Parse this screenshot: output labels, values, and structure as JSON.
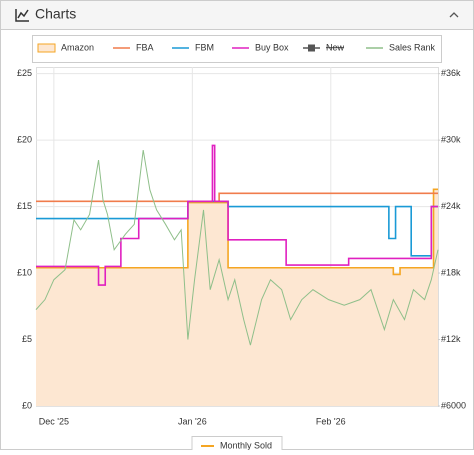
{
  "header": {
    "title": "Charts"
  },
  "chart_data": {
    "type": "line",
    "xlim": [
      -4,
      86
    ],
    "xticks": [
      {
        "value": 0,
        "label": "Dec '25"
      },
      {
        "value": 31,
        "label": "Jan '26"
      },
      {
        "value": 62,
        "label": "Feb '26"
      }
    ],
    "ylim": [
      0,
      25.5
    ],
    "yticks": [
      {
        "value": 0,
        "label": "£0"
      },
      {
        "value": 5,
        "label": "£5"
      },
      {
        "value": 10,
        "label": "£10"
      },
      {
        "value": 15,
        "label": "£15"
      },
      {
        "value": 20,
        "label": "£20"
      },
      {
        "value": 25,
        "label": "£25"
      }
    ],
    "y2lim": [
      6000,
      36600
    ],
    "y2ticks": [
      {
        "value": 6000,
        "label": "#6000"
      },
      {
        "value": 12000,
        "label": "#12k"
      },
      {
        "value": 18000,
        "label": "#18k"
      },
      {
        "value": 24000,
        "label": "#24k"
      },
      {
        "value": 30000,
        "label": "#30k"
      },
      {
        "value": 36000,
        "label": "#36k"
      }
    ],
    "grid": true,
    "series": [
      {
        "name": "Amazon",
        "color": "#f5a623",
        "fill": "#fde7d2",
        "step": true,
        "x": [
          -4,
          30,
          39,
          76,
          77.5,
          85
        ],
        "values": [
          10.4,
          15.3,
          10.4,
          9.9,
          10.4,
          16.3
        ]
      },
      {
        "name": "FBA",
        "color": "#f07c4c",
        "step": true,
        "x": [
          -4,
          37
        ],
        "values": [
          15.4,
          16.0
        ]
      },
      {
        "name": "FBM",
        "color": "#1a9ad6",
        "step": true,
        "x": [
          -4,
          30,
          39,
          75,
          76.5,
          80,
          84.5
        ],
        "values": [
          14.1,
          15.4,
          15.0,
          12.6,
          15.0,
          11.3,
          15.0
        ]
      },
      {
        "name": "Buy Box",
        "color": "#e020c0",
        "step": true,
        "x": [
          -4,
          10,
          11.5,
          15,
          19,
          30,
          35.5,
          36,
          39,
          52,
          66,
          84.5
        ],
        "values": [
          10.5,
          9.1,
          10.5,
          12.6,
          14.1,
          15.4,
          19.6,
          15.4,
          12.5,
          10.6,
          11.1,
          15.0
        ]
      },
      {
        "name": "New",
        "color": "#555555",
        "hidden": true,
        "x": [],
        "values": []
      },
      {
        "name": "Sales Rank",
        "color": "#8fbf8a",
        "axis": "y2",
        "step": false,
        "x": [
          -4,
          -2,
          0,
          2.5,
          4.5,
          6,
          8,
          10,
          11,
          12,
          13.5,
          16,
          18,
          20,
          21.5,
          23,
          25,
          27,
          28.5,
          30,
          31.5,
          33.5,
          35,
          37,
          39,
          40.5,
          42.5,
          44,
          46.5,
          48.5,
          51,
          53,
          55.5,
          58,
          61.5,
          65,
          68.5,
          71,
          74,
          76,
          78.5,
          80.5,
          83,
          84.5,
          86
        ],
        "values": [
          14700,
          15600,
          17400,
          18300,
          22800,
          21900,
          23300,
          28200,
          24600,
          23300,
          20100,
          21500,
          22400,
          29100,
          25500,
          23700,
          22400,
          21000,
          21900,
          12000,
          17400,
          23700,
          16500,
          19200,
          15600,
          17400,
          13800,
          11500,
          15600,
          17400,
          16500,
          13800,
          15600,
          16500,
          15600,
          15100,
          15600,
          16500,
          12900,
          15600,
          13800,
          16500,
          15600,
          17400,
          20100
        ]
      }
    ],
    "extra_legend": "Monthly Sold"
  }
}
